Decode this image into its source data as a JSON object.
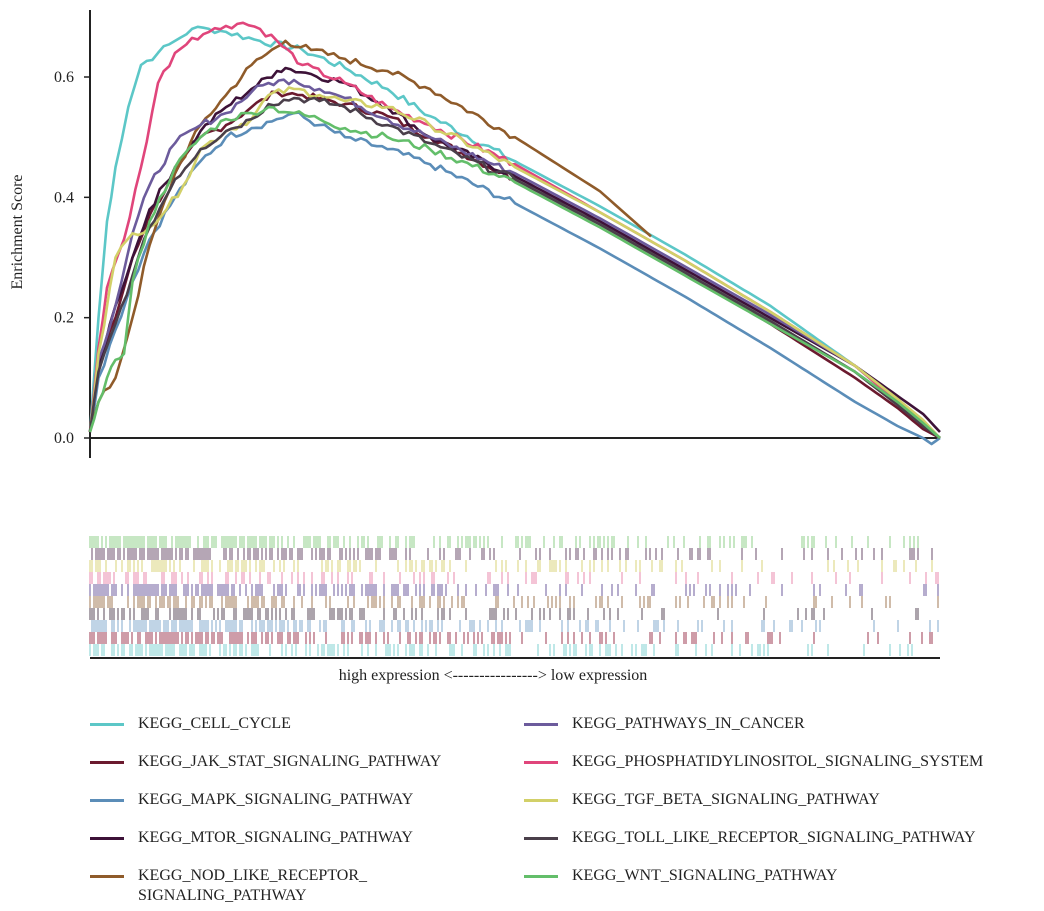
{
  "chart_data": {
    "type": "line",
    "ylabel": "Enrichment Score",
    "xlabel": "high expression <----------------> low expression",
    "ylim": [
      -0.02,
      0.72
    ],
    "yticks": [
      "0.0",
      "0.2",
      "0.4",
      "0.6"
    ],
    "xlim": [
      0,
      1
    ],
    "legend_position": "bottom, two columns",
    "series": [
      {
        "name": "KEGG_CELL_CYCLE",
        "color": "#5cc7c7",
        "x": [
          0,
          0.01,
          0.02,
          0.03,
          0.045,
          0.06,
          0.08,
          0.1,
          0.12,
          0.14,
          0.16,
          0.2,
          0.25,
          0.3,
          0.35,
          0.4,
          0.5,
          0.6,
          0.7,
          0.8,
          0.9,
          0.95,
          0.98,
          1.0
        ],
        "y": [
          0.01,
          0.2,
          0.36,
          0.45,
          0.55,
          0.62,
          0.64,
          0.66,
          0.68,
          0.68,
          0.675,
          0.66,
          0.645,
          0.615,
          0.58,
          0.535,
          0.46,
          0.385,
          0.305,
          0.22,
          0.12,
          0.06,
          0.02,
          0.0
        ]
      },
      {
        "name": "KEGG_JAK_STAT_SIGNALING_PATHWAY",
        "color": "#6b1a2e",
        "x": [
          0,
          0.01,
          0.03,
          0.05,
          0.07,
          0.1,
          0.13,
          0.16,
          0.19,
          0.22,
          0.25,
          0.3,
          0.35,
          0.4,
          0.5,
          0.6,
          0.7,
          0.8,
          0.9,
          0.95,
          0.98,
          1.0
        ],
        "y": [
          0.01,
          0.12,
          0.2,
          0.3,
          0.37,
          0.44,
          0.5,
          0.52,
          0.55,
          0.575,
          0.57,
          0.555,
          0.535,
          0.5,
          0.43,
          0.355,
          0.275,
          0.19,
          0.1,
          0.05,
          0.015,
          0.0
        ]
      },
      {
        "name": "KEGG_MAPK_SIGNALING_PATHWAY",
        "color": "#5b8db8",
        "x": [
          0,
          0.01,
          0.03,
          0.05,
          0.07,
          0.1,
          0.13,
          0.16,
          0.19,
          0.22,
          0.24,
          0.27,
          0.3,
          0.35,
          0.4,
          0.5,
          0.6,
          0.7,
          0.8,
          0.9,
          0.95,
          0.98,
          0.99,
          1.0
        ],
        "y": [
          0.01,
          0.1,
          0.18,
          0.26,
          0.33,
          0.4,
          0.46,
          0.5,
          0.515,
          0.53,
          0.54,
          0.52,
          0.5,
          0.48,
          0.455,
          0.39,
          0.315,
          0.235,
          0.15,
          0.06,
          0.02,
          0.0,
          -0.01,
          0.0
        ]
      },
      {
        "name": "KEGG_MTOR_SIGNALING_PATHWAY",
        "color": "#3d1238",
        "x": [
          0,
          0.01,
          0.03,
          0.05,
          0.07,
          0.1,
          0.13,
          0.16,
          0.19,
          0.22,
          0.23,
          0.26,
          0.3,
          0.35,
          0.4,
          0.5,
          0.6,
          0.7,
          0.8,
          0.9,
          0.95,
          0.98,
          1.0
        ],
        "y": [
          0.01,
          0.12,
          0.22,
          0.3,
          0.38,
          0.45,
          0.51,
          0.55,
          0.58,
          0.61,
          0.615,
          0.605,
          0.59,
          0.55,
          0.5,
          0.435,
          0.36,
          0.28,
          0.2,
          0.12,
          0.07,
          0.04,
          0.01
        ]
      },
      {
        "name": "KEGG_NOD_LIKE_RECEPTOR_\nSIGNALING_PATHWAY",
        "color": "#8f5b2a",
        "x": [
          0,
          0.01,
          0.03,
          0.05,
          0.07,
          0.1,
          0.13,
          0.16,
          0.19,
          0.22,
          0.23,
          0.26,
          0.3,
          0.35,
          0.4,
          0.5,
          0.6,
          0.66
        ],
        "y": [
          0.01,
          0.06,
          0.1,
          0.2,
          0.32,
          0.44,
          0.52,
          0.57,
          0.62,
          0.65,
          0.66,
          0.645,
          0.63,
          0.61,
          0.58,
          0.5,
          0.41,
          0.335
        ]
      },
      {
        "name": "KEGG_PATHWAYS_IN_CANCER",
        "color": "#6c5b9c",
        "x": [
          0,
          0.01,
          0.03,
          0.05,
          0.07,
          0.1,
          0.13,
          0.16,
          0.19,
          0.21,
          0.24,
          0.27,
          0.3,
          0.35,
          0.4,
          0.5,
          0.6,
          0.7,
          0.8,
          0.9,
          0.95,
          0.98,
          1.0
        ],
        "y": [
          0.01,
          0.13,
          0.22,
          0.34,
          0.42,
          0.49,
          0.52,
          0.54,
          0.575,
          0.59,
          0.595,
          0.58,
          0.565,
          0.53,
          0.5,
          0.44,
          0.365,
          0.285,
          0.205,
          0.12,
          0.065,
          0.025,
          0.0
        ]
      },
      {
        "name": "KEGG_PHOSPHATIDYLINOSITOL_SIGNALING_SYSTEM",
        "color": "#e0457b",
        "x": [
          0,
          0.01,
          0.02,
          0.04,
          0.06,
          0.08,
          0.1,
          0.12,
          0.14,
          0.16,
          0.18,
          0.2,
          0.22,
          0.25,
          0.3,
          0.35,
          0.4,
          0.5,
          0.6,
          0.7,
          0.8,
          0.9,
          0.95,
          0.98,
          1.0
        ],
        "y": [
          0.01,
          0.15,
          0.25,
          0.33,
          0.45,
          0.59,
          0.64,
          0.665,
          0.675,
          0.685,
          0.69,
          0.68,
          0.66,
          0.62,
          0.59,
          0.55,
          0.52,
          0.455,
          0.375,
          0.295,
          0.21,
          0.12,
          0.06,
          0.025,
          0.0
        ]
      },
      {
        "name": "KEGG_TGF_BETA_SIGNALING_PATHWAY",
        "color": "#d2d068",
        "x": [
          0,
          0.01,
          0.03,
          0.05,
          0.07,
          0.09,
          0.11,
          0.13,
          0.16,
          0.19,
          0.21,
          0.24,
          0.27,
          0.3,
          0.35,
          0.4,
          0.5,
          0.6,
          0.7,
          0.8,
          0.9,
          0.95,
          0.98,
          1.0
        ],
        "y": [
          0.01,
          0.14,
          0.3,
          0.34,
          0.35,
          0.38,
          0.42,
          0.48,
          0.51,
          0.53,
          0.57,
          0.58,
          0.57,
          0.56,
          0.55,
          0.52,
          0.45,
          0.375,
          0.295,
          0.21,
          0.12,
          0.065,
          0.03,
          0.0
        ]
      },
      {
        "name": "KEGG_TOLL_LIKE_RECEPTOR_SIGNALING_PATHWAY",
        "color": "#4a3f4a",
        "x": [
          0,
          0.01,
          0.03,
          0.05,
          0.07,
          0.1,
          0.13,
          0.16,
          0.19,
          0.21,
          0.24,
          0.27,
          0.3,
          0.35,
          0.4,
          0.5,
          0.6,
          0.7,
          0.8,
          0.9,
          0.95,
          0.98,
          1.0
        ],
        "y": [
          0.01,
          0.11,
          0.19,
          0.27,
          0.35,
          0.43,
          0.48,
          0.51,
          0.53,
          0.555,
          0.565,
          0.56,
          0.55,
          0.52,
          0.49,
          0.43,
          0.355,
          0.275,
          0.195,
          0.11,
          0.055,
          0.02,
          0.0
        ]
      },
      {
        "name": "KEGG_WNT_SIGNALING_PATHWAY",
        "color": "#63be6a",
        "x": [
          0,
          0.01,
          0.02,
          0.03,
          0.04,
          0.05,
          0.07,
          0.1,
          0.13,
          0.16,
          0.19,
          0.21,
          0.24,
          0.27,
          0.3,
          0.35,
          0.4,
          0.5,
          0.6,
          0.7,
          0.8,
          0.9,
          0.95,
          0.98,
          1.0
        ],
        "y": [
          0.01,
          0.06,
          0.1,
          0.13,
          0.14,
          0.26,
          0.36,
          0.45,
          0.5,
          0.53,
          0.54,
          0.55,
          0.54,
          0.53,
          0.515,
          0.5,
          0.48,
          0.425,
          0.35,
          0.27,
          0.19,
          0.11,
          0.06,
          0.025,
          0.0
        ]
      }
    ],
    "hit_tracks": [
      {
        "color": "#8fcf88",
        "density": 0.9
      },
      {
        "color": "#6b4c6b",
        "density": 0.75
      },
      {
        "color": "#d9d37a",
        "density": 0.55
      },
      {
        "color": "#e889ad",
        "density": 0.5
      },
      {
        "color": "#6c5b9c",
        "density": 0.8
      },
      {
        "color": "#a07a55",
        "density": 0.55
      },
      {
        "color": "#5a4a5a",
        "density": 0.65
      },
      {
        "color": "#80a8cc",
        "density": 0.8
      },
      {
        "color": "#9c3a50",
        "density": 0.75
      },
      {
        "color": "#7fd0d0",
        "density": 0.7
      }
    ],
    "legend_layout": [
      {
        "series": 0,
        "column": 0,
        "row": 0
      },
      {
        "series": 5,
        "column": 1,
        "row": 0
      },
      {
        "series": 1,
        "column": 0,
        "row": 1
      },
      {
        "series": 6,
        "column": 1,
        "row": 1
      },
      {
        "series": 2,
        "column": 0,
        "row": 2
      },
      {
        "series": 7,
        "column": 1,
        "row": 2
      },
      {
        "series": 3,
        "column": 0,
        "row": 3
      },
      {
        "series": 8,
        "column": 1,
        "row": 3
      },
      {
        "series": 4,
        "column": 0,
        "row": 4
      },
      {
        "series": 9,
        "column": 1,
        "row": 4
      }
    ]
  }
}
